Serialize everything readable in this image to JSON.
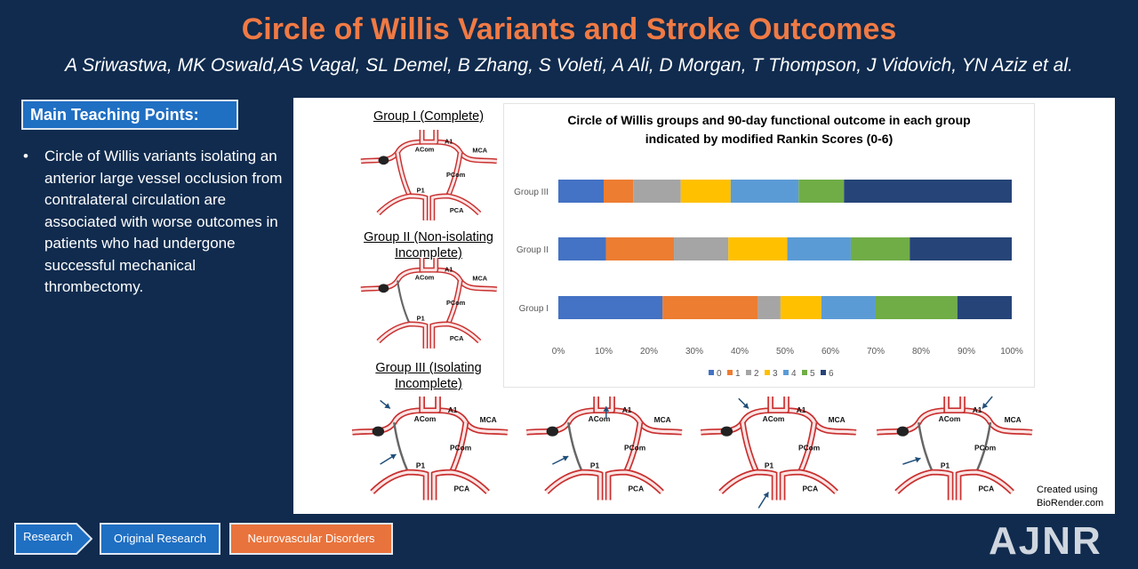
{
  "title": "Circle of Willis Variants and Stroke Outcomes",
  "authors": "A Sriwastwa, MK Oswald,AS Vagal, SL Demel, B Zhang, S Voleti, A Ali, D Morgan, T Thompson, J Vidovich, YN Aziz et al.",
  "teaching": {
    "heading": "Main Teaching Points:",
    "points": [
      "Circle of Willis variants isolating an anterior large vessel occlusion from contralateral circulation are associated with worse outcomes in patients who had undergone successful mechanical thrombectomy."
    ]
  },
  "groups": {
    "g1": "Group I (Complete)",
    "g2a": "Group II (Non-isolating",
    "g2b": "Incomplete)",
    "g3a": "Group III (Isolating",
    "g3b": "Incomplete)"
  },
  "vessel_labels": {
    "a1": "A1",
    "acom": "ACom",
    "mca": "MCA",
    "p1": "P1",
    "pcom": "PCom",
    "pca": "PCA"
  },
  "credit": {
    "line1": "Created using",
    "line2": "BioRender.com"
  },
  "tags": {
    "research": "Research",
    "original": "Original Research",
    "neuro": "Neurovascular Disorders"
  },
  "logo": "AJNR",
  "colors": {
    "background": "#102b4e",
    "title": "#f07a44",
    "accent_blue": "#1f6fc3",
    "accent_orange": "#e9733c",
    "vessel": "#c8302f"
  },
  "chart_data": {
    "type": "bar",
    "orientation": "horizontal",
    "stacked": "percent",
    "title_line1": "Circle of Willis groups and 90-day functional outcome in each group",
    "title_line2": "indicated by modified Rankin Scores (0-6)",
    "categories": [
      "Group III",
      "Group II",
      "Group I"
    ],
    "series": [
      {
        "name": "0",
        "color": "#4472c4",
        "values": [
          10,
          10.5,
          23
        ]
      },
      {
        "name": "1",
        "color": "#ed7d31",
        "values": [
          6.5,
          15,
          21
        ]
      },
      {
        "name": "2",
        "color": "#a5a5a5",
        "values": [
          10.5,
          12,
          5
        ]
      },
      {
        "name": "3",
        "color": "#ffc000",
        "values": [
          11,
          13,
          9
        ]
      },
      {
        "name": "4",
        "color": "#5b9bd5",
        "values": [
          15,
          14,
          12
        ]
      },
      {
        "name": "5",
        "color": "#70ad47",
        "values": [
          10,
          13,
          18
        ]
      },
      {
        "name": "6",
        "color": "#264478",
        "values": [
          37,
          22.5,
          12
        ]
      }
    ],
    "xticks": [
      "0%",
      "10%",
      "20%",
      "30%",
      "40%",
      "50%",
      "60%",
      "70%",
      "80%",
      "90%",
      "100%"
    ],
    "xlim": [
      0,
      100
    ],
    "grid": false,
    "legend": "bottom"
  }
}
